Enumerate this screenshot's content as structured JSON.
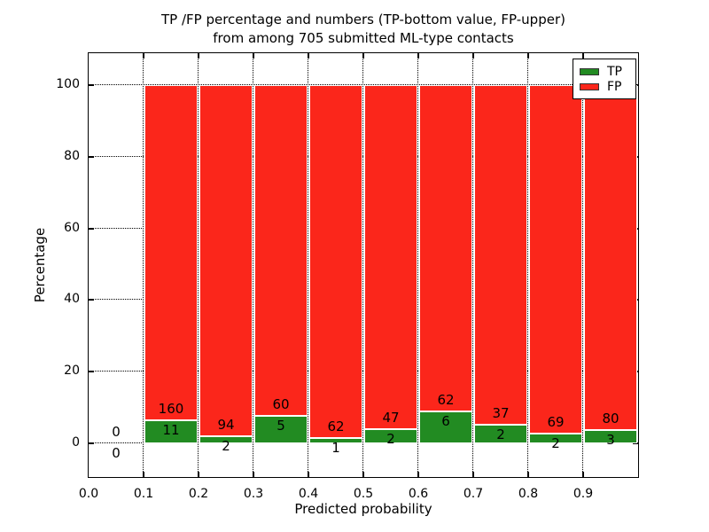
{
  "figure": {
    "title_line1": "TP /FP percentage and numbers (TP-bottom value, FP-upper)",
    "title_line2": "from among 705 submitted ML-type contacts"
  },
  "chart_data": {
    "type": "bar",
    "stacked": true,
    "orientation": "vertical",
    "title": "TP /FP percentage and numbers (TP-bottom value, FP-upper)\nfrom among 705 submitted ML-type contacts",
    "xlabel": "Predicted probability",
    "ylabel": "Percentage",
    "xlim": [
      0.0,
      1.0
    ],
    "ylim": [
      -10,
      110
    ],
    "xtick_labels": [
      "0.0",
      "0.1",
      "0.2",
      "0.3",
      "0.4",
      "0.5",
      "0.6",
      "0.7",
      "0.8",
      "0.9"
    ],
    "xtick_values": [
      0.0,
      0.1,
      0.2,
      0.3,
      0.4,
      0.5,
      0.6,
      0.7,
      0.8,
      0.9
    ],
    "ytick_labels": [
      "0",
      "20",
      "40",
      "60",
      "80",
      "100"
    ],
    "ytick_values": [
      0,
      20,
      40,
      60,
      80,
      100
    ],
    "grid": "dotted",
    "total_contacts": 705,
    "colors": {
      "tp": "#228b22",
      "fp": "#fb261b",
      "bar_edge": "#ffffff",
      "grid": "#000000"
    },
    "legend": {
      "position": "upper-right",
      "entries": [
        {
          "label": "TP",
          "color": "#228b22"
        },
        {
          "label": "FP",
          "color": "#fb261b"
        }
      ]
    },
    "bins": [
      {
        "x_start": 0.0,
        "x_end": 0.1,
        "tp_count": 0,
        "fp_count": 0,
        "tp_pct": 0.0,
        "fp_pct": 0.0,
        "tp_label": "0",
        "fp_label": "0",
        "has_bar": false
      },
      {
        "x_start": 0.1,
        "x_end": 0.2,
        "tp_count": 11,
        "fp_count": 160,
        "tp_pct": 6.43,
        "fp_pct": 93.57,
        "tp_label": "11",
        "fp_label": "160",
        "has_bar": true
      },
      {
        "x_start": 0.2,
        "x_end": 0.3,
        "tp_count": 2,
        "fp_count": 94,
        "tp_pct": 2.08,
        "fp_pct": 97.92,
        "tp_label": "2",
        "fp_label": "94",
        "has_bar": true
      },
      {
        "x_start": 0.3,
        "x_end": 0.4,
        "tp_count": 5,
        "fp_count": 60,
        "tp_pct": 7.69,
        "fp_pct": 92.31,
        "tp_label": "5",
        "fp_label": "60",
        "has_bar": true
      },
      {
        "x_start": 0.4,
        "x_end": 0.5,
        "tp_count": 1,
        "fp_count": 62,
        "tp_pct": 1.59,
        "fp_pct": 98.41,
        "tp_label": "1",
        "fp_label": "62",
        "has_bar": true
      },
      {
        "x_start": 0.5,
        "x_end": 0.6,
        "tp_count": 2,
        "fp_count": 47,
        "tp_pct": 4.08,
        "fp_pct": 95.92,
        "tp_label": "2",
        "fp_label": "47",
        "has_bar": true
      },
      {
        "x_start": 0.6,
        "x_end": 0.7,
        "tp_count": 6,
        "fp_count": 62,
        "tp_pct": 8.82,
        "fp_pct": 91.18,
        "tp_label": "6",
        "fp_label": "62",
        "has_bar": true
      },
      {
        "x_start": 0.7,
        "x_end": 0.8,
        "tp_count": 2,
        "fp_count": 37,
        "tp_pct": 5.13,
        "fp_pct": 94.87,
        "tp_label": "2",
        "fp_label": "37",
        "has_bar": true
      },
      {
        "x_start": 0.8,
        "x_end": 0.9,
        "tp_count": 2,
        "fp_count": 69,
        "tp_pct": 2.82,
        "fp_pct": 97.18,
        "tp_label": "2",
        "fp_label": "69",
        "has_bar": true
      },
      {
        "x_start": 0.9,
        "x_end": 1.0,
        "tp_count": 3,
        "fp_count": 80,
        "tp_pct": 3.61,
        "fp_pct": 96.39,
        "tp_label": "3",
        "fp_label": "80",
        "has_bar": true
      }
    ]
  }
}
